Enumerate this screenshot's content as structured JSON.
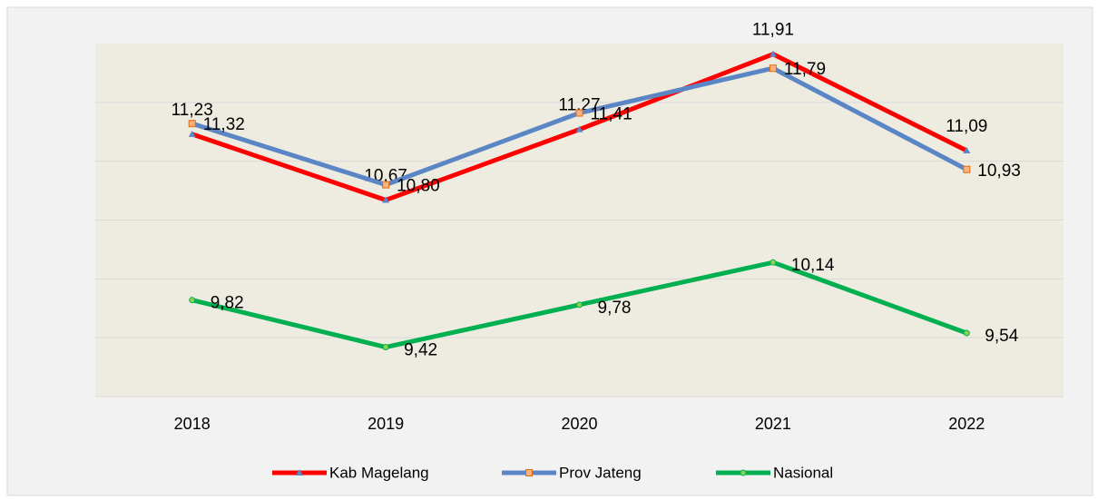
{
  "chart_data": {
    "type": "line",
    "categories": [
      "2018",
      "2019",
      "2020",
      "2021",
      "2022"
    ],
    "series": [
      {
        "name": "Kab Magelang",
        "color": "#ff0000",
        "values": [
          11.23,
          10.67,
          11.27,
          11.91,
          11.09
        ],
        "value_labels": [
          "11,23",
          "10,67",
          "11,27",
          "11,91",
          "11,09"
        ]
      },
      {
        "name": "Prov Jateng",
        "color": "#5b86c5",
        "values": [
          11.32,
          10.8,
          11.41,
          11.79,
          10.93
        ],
        "value_labels": [
          "11,32",
          "10,80",
          "11,41",
          "11,79",
          "10,93"
        ]
      },
      {
        "name": "Nasional",
        "color": "#00b050",
        "values": [
          9.82,
          9.42,
          9.78,
          10.14,
          9.54
        ],
        "value_labels": [
          "9,82",
          "9,42",
          "9,78",
          "10,14",
          "9,54"
        ]
      }
    ],
    "ylim": [
      9,
      12
    ],
    "yticks": [
      9.5,
      10,
      10.5,
      11,
      11.5
    ],
    "grid": true,
    "legend": "bottom"
  }
}
